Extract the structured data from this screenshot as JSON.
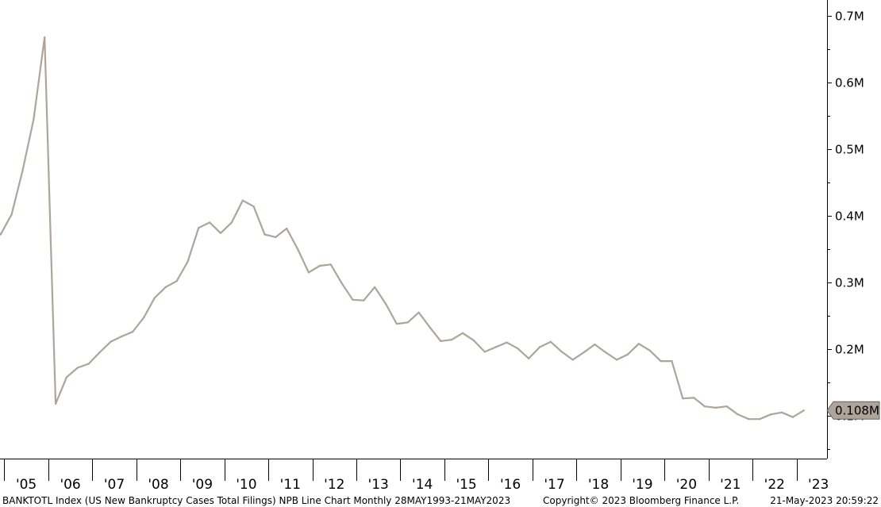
{
  "chart_data": {
    "type": "line",
    "title": "",
    "xlabel": "",
    "ylabel": "",
    "y_tick_labels": [
      "0.1M",
      "0.2M",
      "0.3M",
      "0.4M",
      "0.5M",
      "0.6M",
      "0.7M"
    ],
    "y_tick_values": [
      100000,
      200000,
      300000,
      400000,
      500000,
      600000,
      700000
    ],
    "ylim": [
      60000,
      720000
    ],
    "x_tick_labels": [
      "'05",
      "'06",
      "'07",
      "'08",
      "'09",
      "'10",
      "'11",
      "'12",
      "'13",
      "'14",
      "'15",
      "'16",
      "'17",
      "'18",
      "'19",
      "'20",
      "'21",
      "'22",
      "'23"
    ],
    "x_tick_years": [
      2005,
      2006,
      2007,
      2008,
      2009,
      2010,
      2011,
      2012,
      2013,
      2014,
      2015,
      2016,
      2017,
      2018,
      2019,
      2020,
      2021,
      2022,
      2023
    ],
    "grid": false,
    "line_color": "#aea49a",
    "series": [
      {
        "x": [
          "2004-09",
          "2004-12",
          "2005-03",
          "2005-06",
          "2005-09",
          "2005-12",
          "2006-03",
          "2006-06",
          "2006-09",
          "2006-12",
          "2007-03",
          "2007-06",
          "2007-09",
          "2007-12",
          "2008-03",
          "2008-06",
          "2008-09",
          "2008-12",
          "2009-03",
          "2009-06",
          "2009-09",
          "2009-12",
          "2010-03",
          "2010-06",
          "2010-09",
          "2010-12",
          "2011-03",
          "2011-06",
          "2011-09",
          "2011-12",
          "2012-03",
          "2012-06",
          "2012-09",
          "2012-12",
          "2013-03",
          "2013-06",
          "2013-09",
          "2013-12",
          "2014-03",
          "2014-06",
          "2014-09",
          "2014-12",
          "2015-03",
          "2015-06",
          "2015-09",
          "2015-12",
          "2016-03",
          "2016-06",
          "2016-09",
          "2016-12",
          "2017-03",
          "2017-06",
          "2017-09",
          "2017-12",
          "2018-03",
          "2018-06",
          "2018-09",
          "2018-12",
          "2019-03",
          "2019-06",
          "2019-09",
          "2019-12",
          "2020-03",
          "2020-06",
          "2020-09",
          "2020-12",
          "2021-03",
          "2021-06",
          "2021-09",
          "2021-12",
          "2022-03",
          "2022-06",
          "2022-09",
          "2022-12",
          "2023-03"
        ],
        "values": [
          385000,
          372000,
          402000,
          468000,
          545000,
          668000,
          118000,
          158000,
          172000,
          178000,
          195000,
          211000,
          219000,
          226000,
          247000,
          277000,
          293000,
          302000,
          331000,
          382000,
          390000,
          374000,
          390000,
          423000,
          414000,
          372000,
          368000,
          381000,
          350000,
          315000,
          325000,
          327000,
          299000,
          274000,
          273000,
          293000,
          268000,
          238000,
          240000,
          255000,
          233000,
          212000,
          214000,
          224000,
          213000,
          196000,
          203000,
          210000,
          201000,
          186000,
          203000,
          211000,
          196000,
          184000,
          195000,
          207000,
          195000,
          184000,
          192000,
          208000,
          198000,
          182000,
          182000,
          126000,
          127000,
          114000,
          112000,
          114000,
          102000,
          95000,
          95000,
          102000,
          105000,
          98000,
          108000
        ]
      }
    ],
    "last_value_label": "0.108M",
    "footer": {
      "left": "BANKTOTL Index (US New Bankruptcy Cases Total Filings) NPB Line Chart  Monthly 28MAY1993-21MAY2023",
      "center": "Copyright© 2023 Bloomberg Finance L.P.",
      "right": "21-May-2023 20:59:22"
    }
  }
}
